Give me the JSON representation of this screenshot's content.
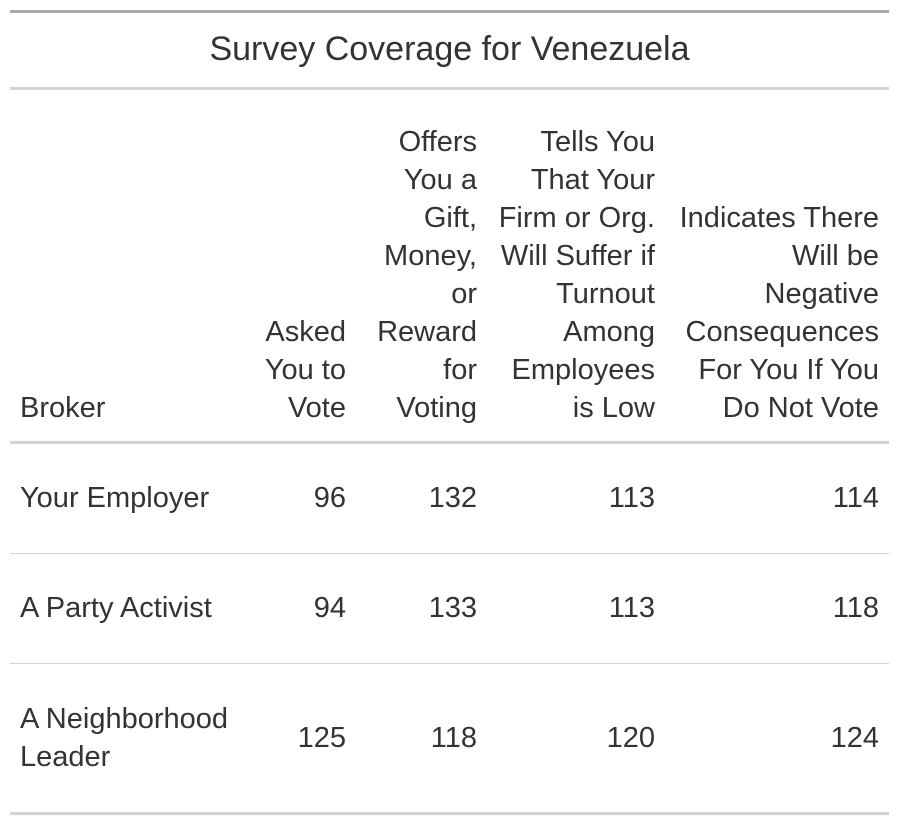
{
  "chart_data": {
    "type": "table",
    "title": "Survey Coverage for Venezuela",
    "columns": [
      "Broker",
      "Asked You to Vote",
      "Offers You a Gift, Money, or Reward for Voting",
      "Tells You That Your Firm or Org. Will Suffer if Turnout Among Employees is Low",
      "Indicates There Will be Negative Consequences For You If You Do Not Vote"
    ],
    "rows": [
      {
        "label": "Your Employer",
        "values": [
          96,
          132,
          113,
          114
        ]
      },
      {
        "label": "A Party Activist",
        "values": [
          94,
          133,
          113,
          118
        ]
      },
      {
        "label": "A Neighborhood Leader",
        "values": [
          125,
          118,
          120,
          124
        ]
      }
    ]
  }
}
